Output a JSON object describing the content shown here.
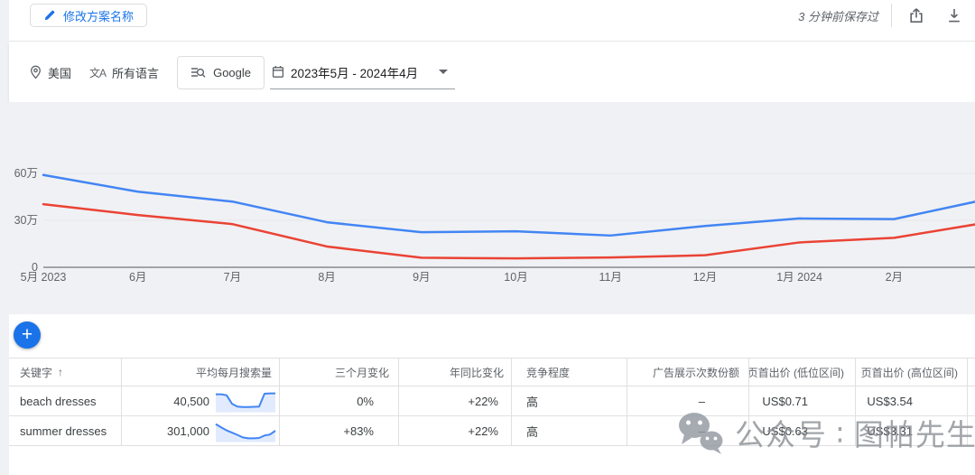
{
  "colors": {
    "accent_blue": "#1a73e8",
    "series_blue": "#4285f4",
    "series_red": "#ea4335",
    "chart_background": "#f0f1f4",
    "gridline": "#e4e6e9",
    "axis": "#85898e"
  },
  "topbar": {
    "edit_button": "修改方案名称",
    "saved_status": "3 分钟前保存过"
  },
  "icons": {
    "translate": "文A",
    "sort_ascending": "↑",
    "fab_plus": "+"
  },
  "filters": {
    "location": "美国",
    "language": "所有语言",
    "network": "Google",
    "date_range": "2023年5月 - 2024年4月"
  },
  "chart_data": {
    "type": "line",
    "title": "",
    "xlabel": "",
    "ylabel": "",
    "legend": "none",
    "grid": true,
    "x_labels": [
      "5月 2023",
      "6月",
      "7月",
      "8月",
      "9月",
      "10月",
      "11月",
      "12月",
      "1月 2024",
      "2月"
    ],
    "y_ticks": [
      {
        "label": "60万",
        "value": 600000
      },
      {
        "label": "30万",
        "value": 300000
      },
      {
        "label": "0",
        "value": 0
      }
    ],
    "ylim": [
      0,
      650000
    ],
    "series": [
      {
        "name": "series-blue",
        "color": "#4285f4",
        "values": [
          590000,
          483000,
          420000,
          288000,
          224000,
          230000,
          203000,
          264000,
          312000,
          308000
        ],
        "clipped_next_value": 437000
      },
      {
        "name": "series-red",
        "color": "#ea4335",
        "values": [
          403000,
          334000,
          276000,
          133000,
          61000,
          57000,
          63000,
          77000,
          159000,
          188000
        ],
        "clipped_next_value": 288000
      }
    ]
  },
  "table": {
    "headers": [
      {
        "label": "关键字"
      },
      {
        "label": "平均每月搜索量"
      },
      {
        "label": "三个月变化"
      },
      {
        "label": "年同比变化"
      },
      {
        "label": "竞争程度"
      },
      {
        "label": "广告展示次数份额"
      },
      {
        "label": "页首出价 (低位区间)"
      },
      {
        "label": "页首出价 (高位区间)"
      }
    ],
    "rows": [
      {
        "keyword": "beach dresses",
        "avg_monthly_searches": "40,500",
        "sparkline": [
          0.85,
          0.85,
          0.8,
          0.35,
          0.2,
          0.18,
          0.18,
          0.19,
          0.2,
          0.88,
          0.9,
          0.9
        ],
        "three_month_change": "0%",
        "yoy_change": "+22%",
        "competition": "高",
        "ad_impression_share": "–",
        "top_bid_low": "US$0.71",
        "top_bid_high": "US$3.54"
      },
      {
        "keyword": "summer dresses",
        "avg_monthly_searches": "301,000",
        "sparkline": [
          0.85,
          0.68,
          0.52,
          0.4,
          0.28,
          0.15,
          0.1,
          0.1,
          0.12,
          0.25,
          0.3,
          0.5
        ],
        "three_month_change": "+83%",
        "yoy_change": "+22%",
        "competition": "高",
        "ad_impression_share": "–",
        "top_bid_low": "US$0.63",
        "top_bid_high": "US$3.31"
      }
    ]
  },
  "watermark": {
    "text": "公众号 ∶ 图帕先生"
  }
}
